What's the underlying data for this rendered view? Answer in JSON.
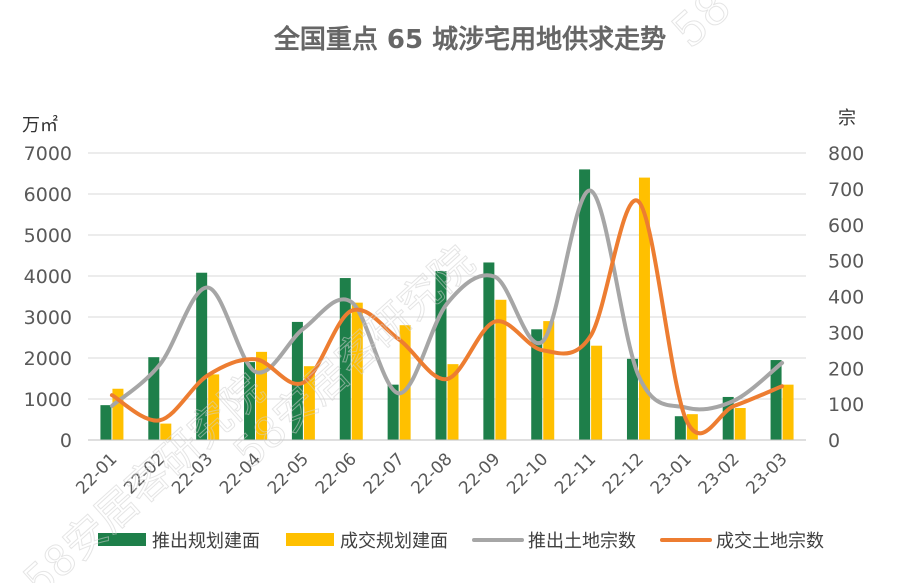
{
  "chart_data": {
    "type": "bar",
    "title": "全国重点 65 城涉宅用地供求走势",
    "y_left_unit": "万㎡",
    "y_right_unit": "宗",
    "ylim_left": [
      0,
      7000
    ],
    "ylim_right": [
      0,
      800
    ],
    "yticks_left": [
      "0",
      "1000",
      "2000",
      "3000",
      "4000",
      "5000",
      "6000",
      "7000"
    ],
    "yticks_right": [
      "0",
      "100",
      "200",
      "300",
      "400",
      "500",
      "600",
      "700",
      "800"
    ],
    "categories": [
      "22-01",
      "22-02",
      "22-03",
      "22-04",
      "22-05",
      "22-06",
      "22-07",
      "22-08",
      "22-09",
      "22-10",
      "22-11",
      "22-12",
      "23-01",
      "23-02",
      "23-03"
    ],
    "series": [
      {
        "name": "推出规划建面",
        "kind": "bar",
        "axis": "left",
        "color": "#1e7f4a",
        "values": [
          850,
          2020,
          4080,
          1900,
          2880,
          3950,
          1350,
          4120,
          4330,
          2700,
          6600,
          1980,
          580,
          1050,
          1950
        ]
      },
      {
        "name": "成交规划建面",
        "kind": "bar",
        "axis": "left",
        "color": "#ffc000",
        "values": [
          1250,
          400,
          1600,
          2150,
          1800,
          3350,
          2800,
          1850,
          3420,
          2900,
          2300,
          6400,
          630,
          780,
          1350
        ]
      },
      {
        "name": "推出土地宗数",
        "kind": "line",
        "axis": "right",
        "color": "#a6a6a6",
        "values": [
          95,
          210,
          425,
          190,
          310,
          385,
          130,
          380,
          455,
          275,
          695,
          180,
          90,
          110,
          215
        ]
      },
      {
        "name": "成交土地宗数",
        "kind": "line",
        "axis": "right",
        "color": "#ed7d31",
        "values": [
          125,
          55,
          180,
          225,
          160,
          360,
          280,
          170,
          330,
          250,
          290,
          665,
          55,
          95,
          150
        ]
      }
    ],
    "grid": true,
    "legend_position": "bottom"
  },
  "watermark": {
    "text_main": "58安居客研究院",
    "text_top": "58"
  }
}
